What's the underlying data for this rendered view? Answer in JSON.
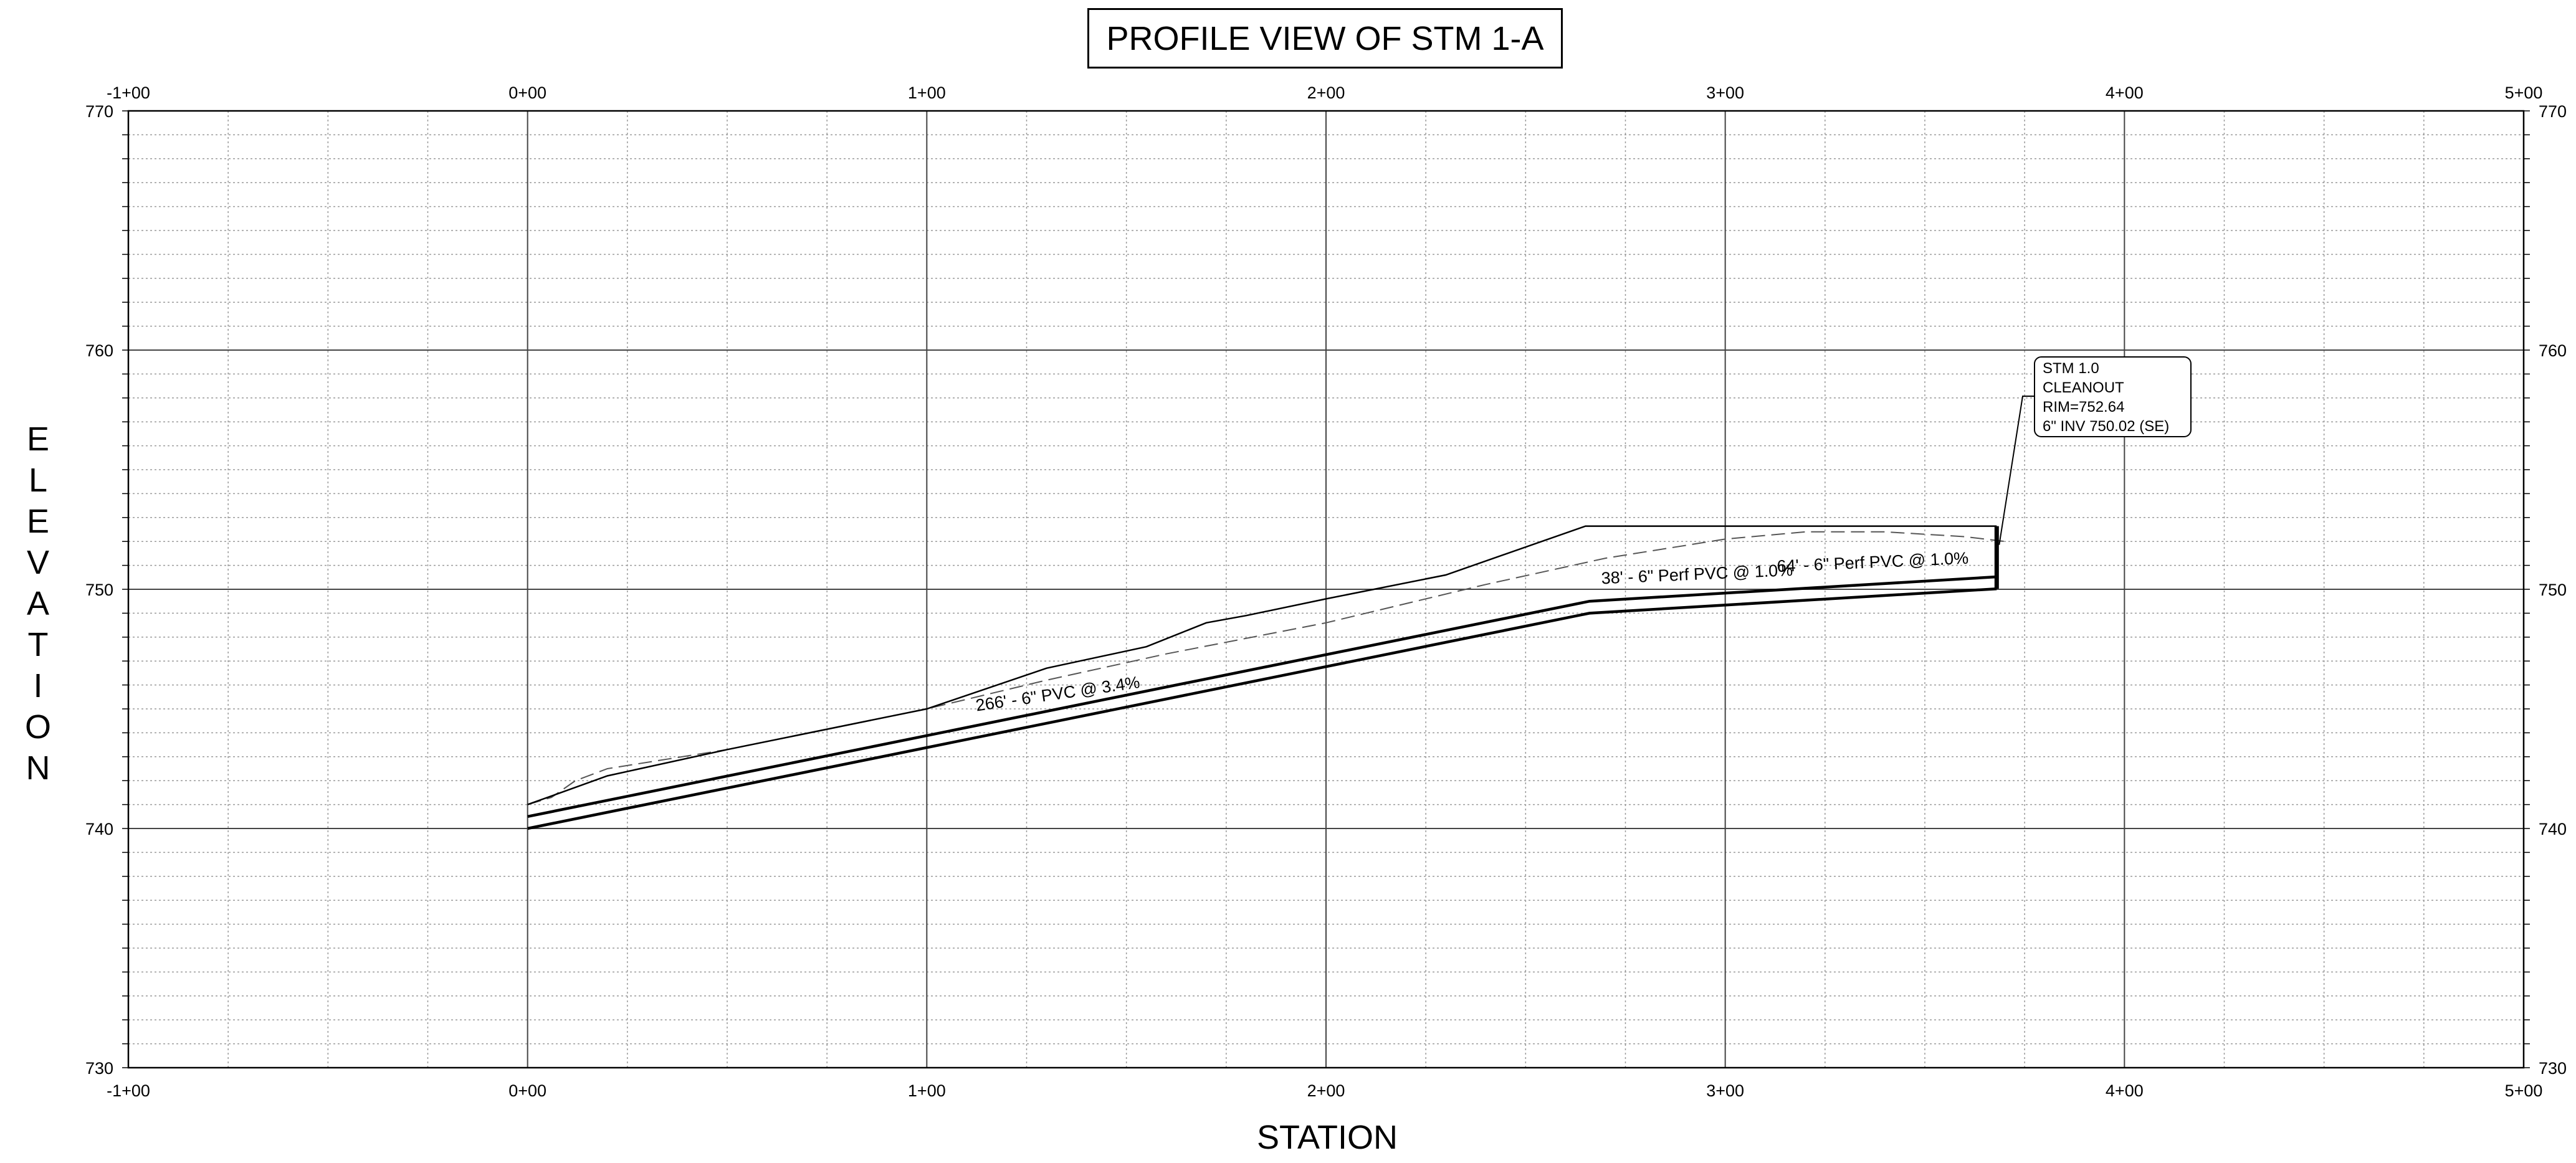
{
  "title": "PROFILE VIEW OF  STM 1-A",
  "y_axis_title": "ELEVATION",
  "x_axis_title": "STATION",
  "chart_data": {
    "type": "line",
    "x_ticks": [
      "-1+00",
      "0+00",
      "1+00",
      "2+00",
      "3+00",
      "4+00",
      "5+00"
    ],
    "y_ticks": [
      "770",
      "760",
      "750",
      "740",
      "730"
    ],
    "xlim": [
      -100,
      500
    ],
    "ylim": [
      730,
      770
    ],
    "grid": true,
    "series": [
      {
        "style": "existing-ground-dashed",
        "x": [
          0,
          6,
          12,
          20,
          50,
          100,
          130,
          160,
          200,
          240,
          270,
          300,
          320,
          340,
          360,
          370
        ],
        "y": [
          741.0,
          741.3,
          742.0,
          742.5,
          743.3,
          745.0,
          746.2,
          747.3,
          748.6,
          750.2,
          751.3,
          752.1,
          752.4,
          752.4,
          752.2,
          752.0
        ]
      },
      {
        "style": "proposed-grade",
        "x": [
          0,
          20,
          50,
          100,
          130,
          155,
          170,
          180,
          200,
          230,
          265,
          300,
          340,
          368
        ],
        "y": [
          741.0,
          742.2,
          743.3,
          745.0,
          746.7,
          747.6,
          748.6,
          748.9,
          749.6,
          750.6,
          752.64,
          752.64,
          752.64,
          752.64
        ]
      },
      {
        "style": "pipe-top",
        "x": [
          0,
          266,
          368
        ],
        "y": [
          740.5,
          749.5,
          750.52
        ]
      },
      {
        "style": "pipe-invert",
        "x": [
          0,
          266,
          368
        ],
        "y": [
          740.0,
          749.0,
          750.02
        ]
      }
    ],
    "annotations": [
      "266' - 6\" PVC @ 3.4%",
      "38' - 6\" Perf PVC @ 1.0%",
      "64' - 6\" Perf PVC @ 1.0%"
    ],
    "structure": {
      "station": 368,
      "lines": [
        "STM 1.0",
        "CLEANOUT",
        "RIM=752.64",
        "6\" INV 750.02 (SE)"
      ],
      "rim": 752.64,
      "invert": 750.02
    }
  }
}
